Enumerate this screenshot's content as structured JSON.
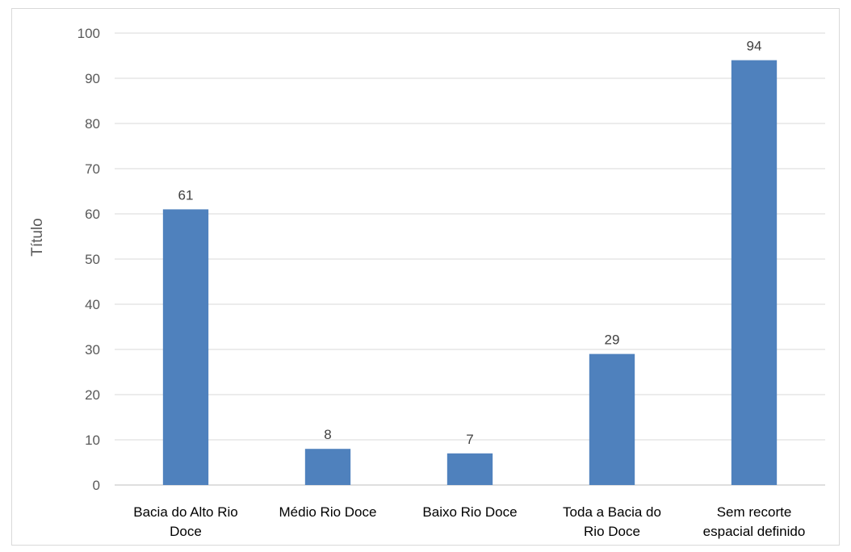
{
  "chart_data": {
    "type": "bar",
    "categories": [
      [
        "Bacia do Alto Rio",
        "Doce"
      ],
      [
        "Médio Rio Doce"
      ],
      [
        "Baixo Rio Doce"
      ],
      [
        "Toda a Bacia do",
        "Rio Doce"
      ],
      [
        "Sem recorte",
        "espacial definido"
      ]
    ],
    "values": [
      61,
      8,
      7,
      29,
      94
    ],
    "data_labels": [
      "61",
      "8",
      "7",
      "29",
      "94"
    ],
    "title": "",
    "xlabel": "",
    "ylabel": "Título",
    "ylim": [
      0,
      100
    ],
    "yticks": [
      0,
      10,
      20,
      30,
      40,
      50,
      60,
      70,
      80,
      90,
      100
    ],
    "grid": true,
    "legend": "none",
    "bar_color": "#4f81bd",
    "grid_color": "#d9d9d9",
    "axis_color": "#bfbfbf"
  }
}
